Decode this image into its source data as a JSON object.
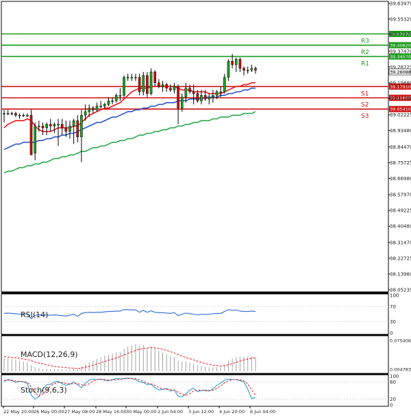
{
  "chart_data": {
    "type": "candlestick",
    "main": {
      "ylim": [
        38.05235,
        39.6397
      ],
      "y_ticks": [
        "39.63970",
        "39.55320",
        "39.47070",
        "39.37470",
        "39.28725",
        "39.19880",
        "39.11360",
        "39.02225",
        "38.93480",
        "38.84470",
        "38.75725",
        "38.66980",
        "38.57970",
        "38.49225",
        "38.40480",
        "38.31470",
        "38.22725",
        "38.13980",
        "38.05235"
      ],
      "candles": [
        [
          39.03,
          39.05,
          38.98,
          39.03
        ],
        [
          39.03,
          39.05,
          39.02,
          39.03
        ],
        [
          39.03,
          39.04,
          39.02,
          39.03
        ],
        [
          39.03,
          39.04,
          39.01,
          39.02
        ],
        [
          39.02,
          39.03,
          39.0,
          39.02
        ],
        [
          39.02,
          39.03,
          39.01,
          39.02
        ],
        [
          39.02,
          39.03,
          39.01,
          39.02
        ],
        [
          39.02,
          39.05,
          38.8,
          38.8
        ],
        [
          38.81,
          38.98,
          38.77,
          38.96
        ],
        [
          38.96,
          38.99,
          38.93,
          38.96
        ],
        [
          38.96,
          38.98,
          38.91,
          38.95
        ],
        [
          38.95,
          38.98,
          38.91,
          38.97
        ],
        [
          38.97,
          39.0,
          38.93,
          38.96
        ],
        [
          38.96,
          38.98,
          38.92,
          38.97
        ],
        [
          38.97,
          39.0,
          38.85,
          38.97
        ],
        [
          38.97,
          39.0,
          38.91,
          38.95
        ],
        [
          38.95,
          38.99,
          38.9,
          38.93
        ],
        [
          38.93,
          38.99,
          38.89,
          38.96
        ],
        [
          38.96,
          39.0,
          38.86,
          38.99
        ],
        [
          38.99,
          39.02,
          38.87,
          38.9
        ],
        [
          38.9,
          39.05,
          38.76,
          39.02
        ],
        [
          39.02,
          39.08,
          38.99,
          39.04
        ],
        [
          39.04,
          39.08,
          39.01,
          39.06
        ],
        [
          39.06,
          39.07,
          39.03,
          39.05
        ],
        [
          39.05,
          39.09,
          39.04,
          39.07
        ],
        [
          39.07,
          39.1,
          39.06,
          39.07
        ],
        [
          39.07,
          39.09,
          39.06,
          39.08
        ],
        [
          39.08,
          39.12,
          39.07,
          39.1
        ],
        [
          39.1,
          39.12,
          39.08,
          39.1
        ],
        [
          39.1,
          39.14,
          39.09,
          39.13
        ],
        [
          39.13,
          39.17,
          39.1,
          39.13
        ],
        [
          39.13,
          39.24,
          39.12,
          39.23
        ],
        [
          39.23,
          39.25,
          39.21,
          39.23
        ],
        [
          39.23,
          39.25,
          39.21,
          39.23
        ],
        [
          39.23,
          39.25,
          39.21,
          39.23
        ],
        [
          39.23,
          39.25,
          39.13,
          39.15
        ],
        [
          39.15,
          39.26,
          39.13,
          39.24
        ],
        [
          39.24,
          39.26,
          39.12,
          39.14
        ],
        [
          39.14,
          39.28,
          39.13,
          39.26
        ],
        [
          39.26,
          39.27,
          39.18,
          39.2
        ],
        [
          39.2,
          39.22,
          39.17,
          39.18
        ],
        [
          39.18,
          39.21,
          39.15,
          39.19
        ],
        [
          39.19,
          39.2,
          39.15,
          39.17
        ],
        [
          39.17,
          39.19,
          39.15,
          39.16
        ],
        [
          39.16,
          39.2,
          39.14,
          39.18
        ],
        [
          39.18,
          39.19,
          38.97,
          39.06
        ],
        [
          39.06,
          39.14,
          39.04,
          39.12
        ],
        [
          39.12,
          39.2,
          39.09,
          39.17
        ],
        [
          39.17,
          39.19,
          39.14,
          39.15
        ],
        [
          39.15,
          39.19,
          39.08,
          39.14
        ],
        [
          39.14,
          39.16,
          39.09,
          39.1
        ],
        [
          39.1,
          39.16,
          39.08,
          39.13
        ],
        [
          39.13,
          39.16,
          39.1,
          39.11
        ],
        [
          39.11,
          39.14,
          39.08,
          39.12
        ],
        [
          39.12,
          39.16,
          39.09,
          39.13
        ],
        [
          39.13,
          39.16,
          39.11,
          39.15
        ],
        [
          39.15,
          39.18,
          39.12,
          39.15
        ],
        [
          39.15,
          39.25,
          39.14,
          39.23
        ],
        [
          39.23,
          39.33,
          39.21,
          39.32
        ],
        [
          39.32,
          39.36,
          39.28,
          39.3
        ],
        [
          39.3,
          39.34,
          39.26,
          39.33
        ],
        [
          39.33,
          39.34,
          39.26,
          39.28
        ],
        [
          39.28,
          39.29,
          39.24,
          39.27
        ],
        [
          39.27,
          39.29,
          39.25,
          39.27
        ],
        [
          39.27,
          39.3,
          39.26,
          39.28
        ],
        [
          39.28,
          39.29,
          39.25,
          39.27
        ]
      ],
      "moving_averages": [
        {
          "color": "#e8141c",
          "values": [
            38.95,
            38.97,
            38.98,
            38.99,
            38.99,
            38.99,
            39.0,
            38.99,
            38.96,
            38.94,
            38.93,
            38.93,
            38.93,
            38.94,
            38.95,
            38.95,
            38.95,
            38.95,
            38.96,
            38.96,
            38.98,
            39.0,
            39.02,
            39.03,
            39.04,
            39.05,
            39.06,
            39.06,
            39.07,
            39.08,
            39.09,
            39.11,
            39.13,
            39.15,
            39.16,
            39.17,
            39.17,
            39.17,
            39.18,
            39.18,
            39.18,
            39.18,
            39.18,
            39.18,
            39.18,
            39.17,
            39.16,
            39.16,
            39.16,
            39.15,
            39.15,
            39.15,
            39.15,
            39.14,
            39.14,
            39.14,
            39.14,
            39.15,
            39.16,
            39.17,
            39.18,
            39.18,
            39.19,
            39.19,
            39.2,
            39.2
          ]
        },
        {
          "color": "#2a54c8",
          "values": [
            38.83,
            38.84,
            38.85,
            38.86,
            38.86,
            38.87,
            38.87,
            38.87,
            38.87,
            38.88,
            38.88,
            38.89,
            38.89,
            38.9,
            38.9,
            38.91,
            38.91,
            38.92,
            38.92,
            38.93,
            38.94,
            38.95,
            38.96,
            38.97,
            38.98,
            38.98,
            38.99,
            39.0,
            39.01,
            39.01,
            39.02,
            39.03,
            39.04,
            39.04,
            39.05,
            39.05,
            39.06,
            39.06,
            39.07,
            39.07,
            39.08,
            39.08,
            39.09,
            39.09,
            39.09,
            39.1,
            39.1,
            39.1,
            39.11,
            39.11,
            39.11,
            39.11,
            39.12,
            39.12,
            39.12,
            39.12,
            39.13,
            39.13,
            39.14,
            39.14,
            39.15,
            39.15,
            39.16,
            39.16,
            39.17,
            39.17
          ]
        },
        {
          "color": "#28a84e",
          "values": [
            38.7,
            38.71,
            38.71,
            38.72,
            38.73,
            38.73,
            38.74,
            38.74,
            38.75,
            38.75,
            38.76,
            38.76,
            38.77,
            38.78,
            38.78,
            38.79,
            38.79,
            38.8,
            38.8,
            38.81,
            38.82,
            38.82,
            38.83,
            38.84,
            38.84,
            38.85,
            38.85,
            38.86,
            38.87,
            38.87,
            38.88,
            38.88,
            38.89,
            38.89,
            38.9,
            38.91,
            38.91,
            38.92,
            38.92,
            38.93,
            38.93,
            38.94,
            38.94,
            38.95,
            38.95,
            38.96,
            38.96,
            38.97,
            38.97,
            38.98,
            38.98,
            38.99,
            38.99,
            38.99,
            39.0,
            39.0,
            39.01,
            39.01,
            39.01,
            39.02,
            39.02,
            39.02,
            39.03,
            39.03,
            39.03,
            39.04
          ]
        }
      ],
      "levels": [
        {
          "label": "R3",
          "value": 39.4707,
          "color": "#1a9a1a"
        },
        {
          "label": "R2",
          "value": 39.4082,
          "color": "#1a9a1a"
        },
        {
          "label": "R1",
          "value": 39.3457,
          "color": "#1a9a1a"
        },
        {
          "label": "S1",
          "value": 39.1791,
          "color": "#cc1111"
        },
        {
          "label": "S2",
          "value": 39.1166,
          "color": "#cc1111"
        },
        {
          "label": "S3",
          "value": 39.0541,
          "color": "#cc1111"
        }
      ],
      "current_price": {
        "label": "39.26088",
        "value": 39.26088
      },
      "extra_labels": [
        {
          "label": "39.28725",
          "value": 39.28725
        }
      ]
    },
    "x_tick_labels": [
      "22 May 20:00",
      "26 May 00:00",
      "27 May 08:00",
      "28 May 16:00",
      "30 May 00:00",
      "2 Jun 04:00",
      "3 Jun 12:00",
      "4 Jun 20:00",
      "6 Jun 04:00"
    ],
    "rsi": {
      "title": "RSI(14)",
      "ylim": [
        0,
        100
      ],
      "y_ticks": [
        "100",
        "70",
        "30",
        "0"
      ],
      "values": [
        52,
        53,
        52,
        51,
        50,
        51,
        50,
        38,
        47,
        48,
        47,
        48,
        47,
        48,
        47,
        46,
        45,
        47,
        50,
        44,
        52,
        54,
        55,
        54,
        55,
        55,
        56,
        57,
        57,
        58,
        58,
        62,
        62,
        61,
        61,
        55,
        60,
        55,
        59,
        55,
        54,
        54,
        53,
        52,
        54,
        46,
        50,
        53,
        51,
        50,
        48,
        50,
        49,
        50,
        51,
        52,
        52,
        57,
        62,
        60,
        61,
        58,
        57,
        57,
        58,
        57
      ],
      "color": "#2a6ad0"
    },
    "macd": {
      "title": "MACD(12,26,9)",
      "y_ticks": [
        "0.075406",
        "0.004783"
      ],
      "histogram": [
        0.032,
        0.031,
        0.03,
        0.028,
        0.026,
        0.024,
        0.022,
        0.015,
        0.01,
        0.008,
        0.006,
        0.006,
        0.006,
        0.006,
        0.006,
        0.005,
        0.004,
        0.005,
        0.007,
        0.005,
        0.012,
        0.017,
        0.022,
        0.026,
        0.03,
        0.034,
        0.038,
        0.041,
        0.043,
        0.046,
        0.048,
        0.056,
        0.061,
        0.064,
        0.066,
        0.062,
        0.064,
        0.058,
        0.06,
        0.055,
        0.05,
        0.046,
        0.042,
        0.037,
        0.035,
        0.026,
        0.024,
        0.024,
        0.022,
        0.019,
        0.015,
        0.013,
        0.011,
        0.01,
        0.01,
        0.01,
        0.011,
        0.017,
        0.026,
        0.031,
        0.035,
        0.036,
        0.036,
        0.036,
        0.036,
        0.035
      ],
      "signal": [
        0.036,
        0.035,
        0.034,
        0.033,
        0.032,
        0.03,
        0.029,
        0.026,
        0.023,
        0.02,
        0.018,
        0.016,
        0.014,
        0.012,
        0.011,
        0.01,
        0.009,
        0.008,
        0.008,
        0.007,
        0.008,
        0.01,
        0.012,
        0.015,
        0.018,
        0.021,
        0.024,
        0.027,
        0.03,
        0.033,
        0.036,
        0.04,
        0.044,
        0.048,
        0.051,
        0.054,
        0.056,
        0.057,
        0.058,
        0.057,
        0.056,
        0.054,
        0.051,
        0.048,
        0.045,
        0.041,
        0.037,
        0.034,
        0.031,
        0.028,
        0.025,
        0.022,
        0.019,
        0.017,
        0.015,
        0.014,
        0.013,
        0.014,
        0.016,
        0.019,
        0.022,
        0.025,
        0.028,
        0.03,
        0.032,
        0.033
      ],
      "ylim": [
        0,
        0.082
      ],
      "histogram_color": "#a0a0a0",
      "signal_color": "#e8141c"
    },
    "stoch": {
      "title": "Stoch(9,6,3)",
      "y_ticks": [
        "100",
        "80",
        "20",
        "0"
      ],
      "ylim": [
        0,
        100
      ],
      "main": [
        82,
        88,
        85,
        78,
        82,
        80,
        74,
        35,
        20,
        30,
        55,
        70,
        72,
        80,
        82,
        74,
        68,
        72,
        80,
        70,
        60,
        75,
        86,
        90,
        88,
        90,
        86,
        84,
        88,
        92,
        90,
        92,
        93,
        92,
        88,
        80,
        78,
        70,
        72,
        60,
        52,
        54,
        58,
        48,
        52,
        30,
        28,
        38,
        52,
        58,
        46,
        50,
        52,
        48,
        55,
        68,
        76,
        86,
        90,
        88,
        88,
        84,
        80,
        55,
        22,
        26
      ],
      "signal": [
        85,
        86,
        86,
        83,
        82,
        81,
        79,
        63,
        43,
        30,
        38,
        52,
        66,
        74,
        78,
        78,
        75,
        73,
        74,
        74,
        70,
        68,
        74,
        82,
        88,
        89,
        88,
        86,
        86,
        88,
        89,
        91,
        92,
        92,
        91,
        87,
        82,
        76,
        73,
        68,
        61,
        55,
        54,
        53,
        51,
        44,
        37,
        33,
        39,
        49,
        52,
        51,
        49,
        50,
        51,
        57,
        66,
        77,
        84,
        88,
        89,
        87,
        84,
        73,
        52,
        34
      ],
      "main_color": "#2a9ad0",
      "signal_color": "#e8141c"
    }
  }
}
